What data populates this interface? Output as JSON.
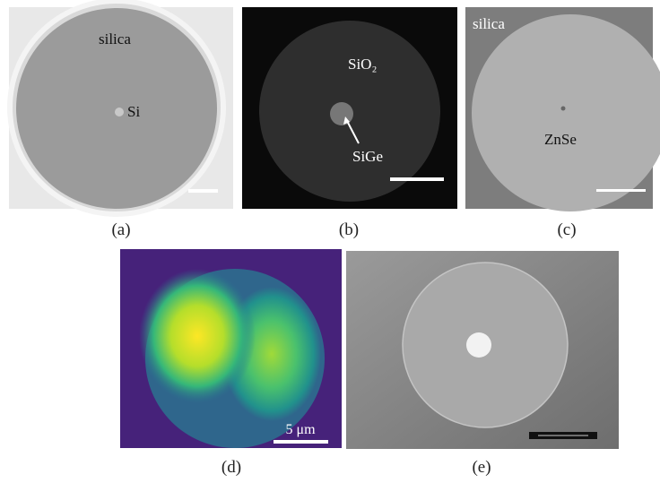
{
  "panels": [
    {
      "caption": "(a)",
      "labels": [
        "silica",
        "Si"
      ]
    },
    {
      "caption": "(b)",
      "labels": [
        "SiO₂",
        "SiGe"
      ]
    },
    {
      "caption": "(c)",
      "labels": [
        "silica",
        "ZnSe"
      ]
    },
    {
      "caption": "(d)",
      "labels": [
        "5 μm"
      ]
    },
    {
      "caption": "(e)",
      "labels": []
    }
  ]
}
